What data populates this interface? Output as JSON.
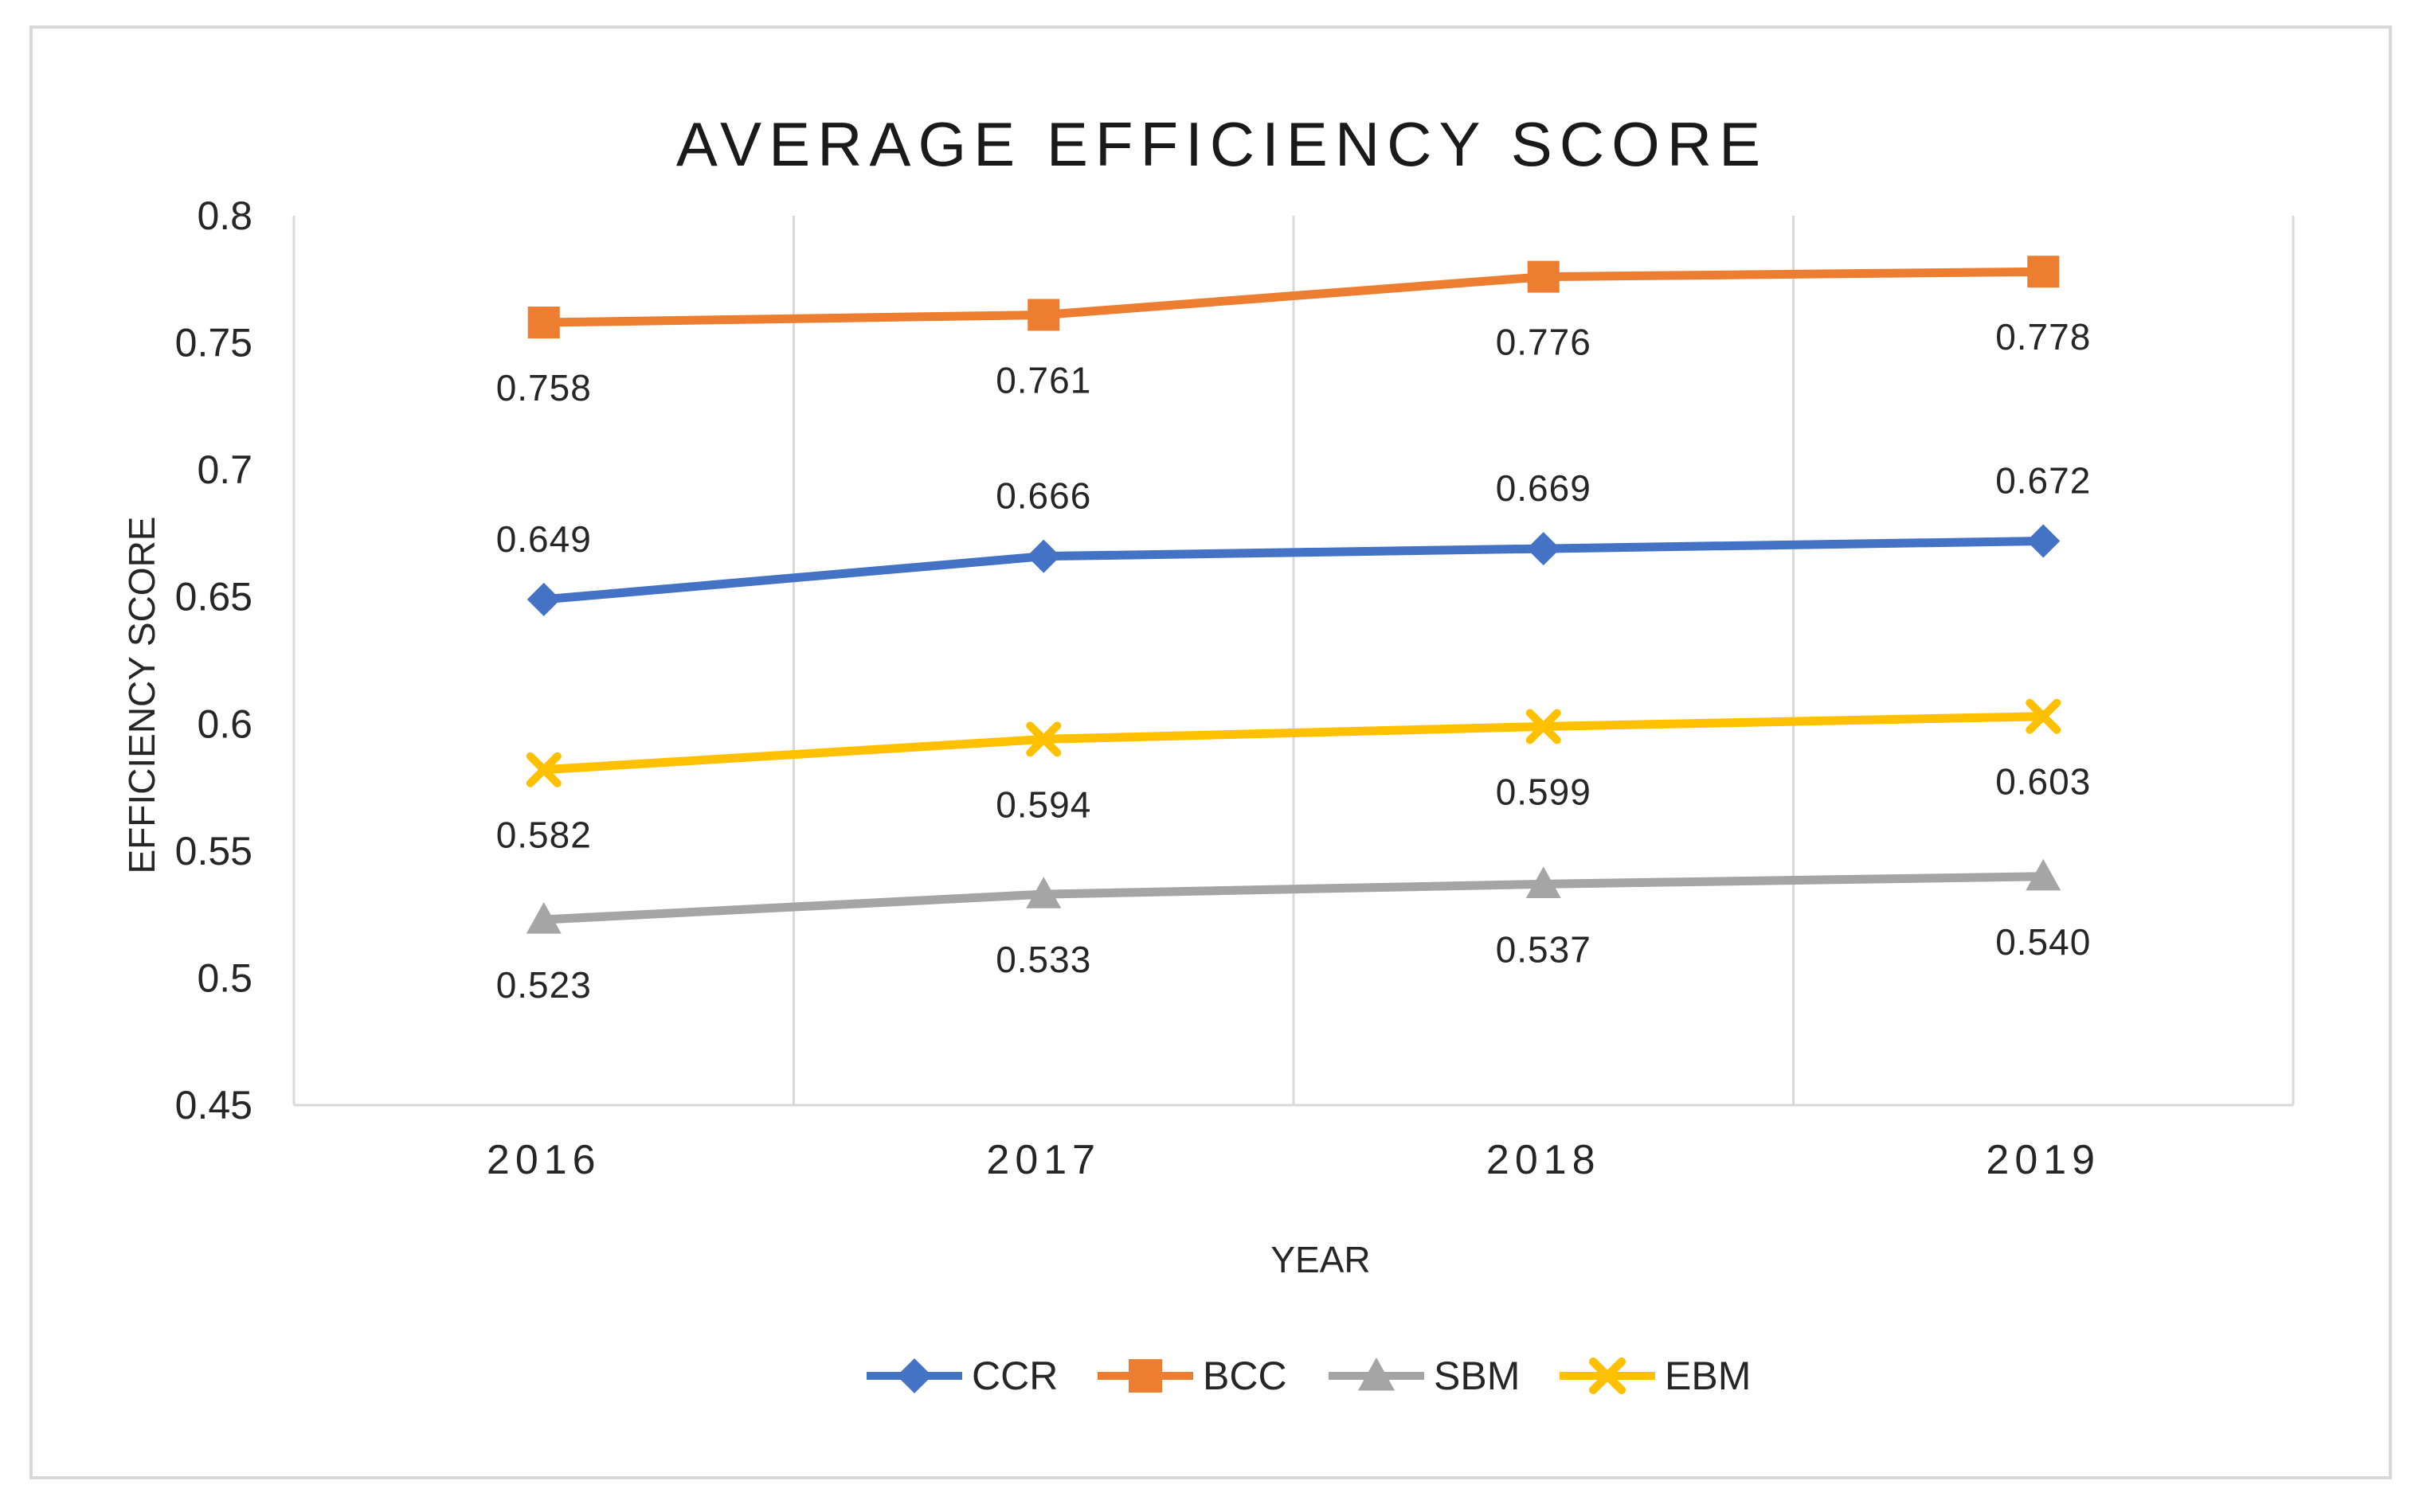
{
  "chart_data": {
    "type": "line",
    "title": "AVERAGE EFFICIENCY SCORE",
    "xlabel": "YEAR",
    "ylabel": "EFFICIENCY SCORE",
    "categories": [
      "2016",
      "2017",
      "2018",
      "2019"
    ],
    "ylim": [
      0.45,
      0.8
    ],
    "yticks": [
      0.45,
      0.5,
      0.55,
      0.6,
      0.65,
      0.7,
      0.75,
      0.8
    ],
    "ytick_labels": [
      "0.45",
      "0.5",
      "0.55",
      "0.6",
      "0.65",
      "0.7",
      "0.75",
      "0.8"
    ],
    "grid": "vertical",
    "legend_position": "bottom",
    "series": [
      {
        "name": "CCR",
        "color": "#4472c4",
        "marker": "diamond",
        "label_side": "above",
        "values": [
          0.649,
          0.666,
          0.669,
          0.672
        ],
        "labels": [
          "0.649",
          "0.666",
          "0.669",
          "0.672"
        ]
      },
      {
        "name": "BCC",
        "color": "#ed7d31",
        "marker": "square",
        "label_side": "below",
        "values": [
          0.758,
          0.761,
          0.776,
          0.778
        ],
        "labels": [
          "0.758",
          "0.761",
          "0.776",
          "0.778"
        ]
      },
      {
        "name": "SBM",
        "color": "#a5a5a5",
        "marker": "triangle",
        "label_side": "below",
        "values": [
          0.523,
          0.533,
          0.537,
          0.54
        ],
        "labels": [
          "0.523",
          "0.533",
          "0.537",
          "0.540"
        ]
      },
      {
        "name": "EBM",
        "color": "#ffc000",
        "marker": "x",
        "label_side": "below",
        "values": [
          0.582,
          0.594,
          0.599,
          0.603
        ],
        "labels": [
          "0.582",
          "0.594",
          "0.599",
          "0.603"
        ]
      }
    ]
  }
}
